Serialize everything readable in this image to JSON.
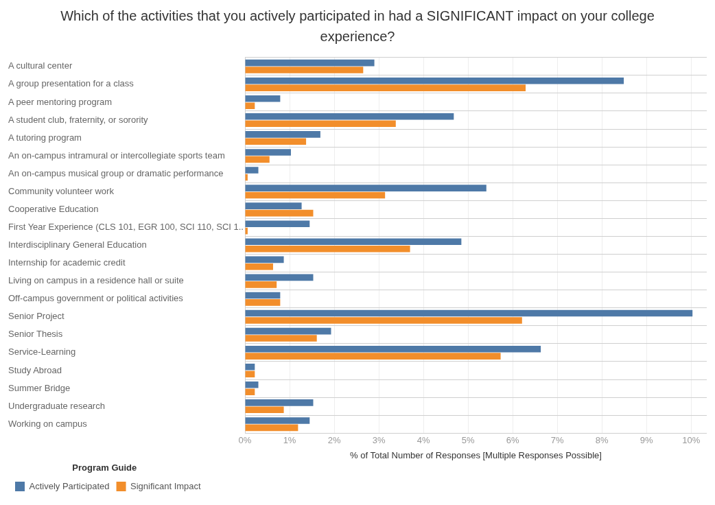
{
  "chart_data": {
    "type": "bar",
    "orientation": "horizontal",
    "title": "Which of the activities that you actively participated in had a SIGNIFICANT impact on your college experience?",
    "xlabel": "% of Total Number of Responses [Multiple Responses Possible]",
    "legend_title": "Program Guide",
    "categories": [
      "A cultural center",
      "A group presentation for a class",
      "A peer mentoring program",
      "A student club, fraternity, or sorority",
      "A tutoring program",
      "An on-campus intramural or intercollegiate sports team",
      "An on-campus musical group or dramatic performance",
      "Community volunteer work",
      "Cooperative Education",
      "First Year Experience (CLS 101, EGR 100, SCI 110, SCI 1..",
      "Interdisciplinary General Education",
      "Internship for academic credit",
      "Living on campus in a residence hall or suite",
      "Off-campus government or political activities",
      "Senior Project",
      "Senior Thesis",
      "Service-Learning",
      "Study Abroad",
      "Summer Bridge",
      "Undergraduate research",
      "Working on campus"
    ],
    "series": [
      {
        "name": "Actively Participated",
        "color": "#4e79a7",
        "values": [
          2.9,
          8.49,
          0.79,
          4.68,
          1.69,
          1.03,
          0.3,
          5.41,
          1.27,
          1.45,
          4.85,
          0.87,
          1.53,
          0.79,
          10.03,
          1.93,
          6.63,
          0.22,
          0.3,
          1.53,
          1.45
        ]
      },
      {
        "name": "Significant Impact",
        "color": "#f28e2b",
        "values": [
          2.65,
          6.29,
          0.22,
          3.38,
          1.37,
          0.55,
          0.06,
          3.14,
          1.53,
          0.06,
          3.7,
          0.63,
          0.71,
          0.79,
          6.21,
          1.61,
          5.73,
          0.22,
          0.22,
          0.87,
          1.19
        ]
      }
    ],
    "xlim": [
      0,
      10.35
    ],
    "xticks": [
      {
        "value": 0,
        "label": "0%"
      },
      {
        "value": 1,
        "label": "1%"
      },
      {
        "value": 2,
        "label": "2%"
      },
      {
        "value": 3,
        "label": "3%"
      },
      {
        "value": 4,
        "label": "4%"
      },
      {
        "value": 5,
        "label": "5%"
      },
      {
        "value": 6,
        "label": "6%"
      },
      {
        "value": 7,
        "label": "7%"
      },
      {
        "value": 8,
        "label": "8%"
      },
      {
        "value": 9,
        "label": "9%"
      },
      {
        "value": 10,
        "label": "10%"
      }
    ],
    "grid": true,
    "legend": "bottom left"
  }
}
